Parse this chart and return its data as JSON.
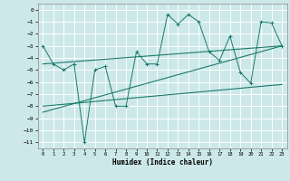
{
  "xlabel": "Humidex (Indice chaleur)",
  "xlim": [
    -0.5,
    23.5
  ],
  "ylim": [
    -11.5,
    0.5
  ],
  "yticks": [
    0,
    -1,
    -2,
    -3,
    -4,
    -5,
    -6,
    -7,
    -8,
    -9,
    -10,
    -11
  ],
  "xticks": [
    0,
    1,
    2,
    3,
    4,
    5,
    6,
    7,
    8,
    9,
    10,
    11,
    12,
    13,
    14,
    15,
    16,
    17,
    18,
    19,
    20,
    21,
    22,
    23
  ],
  "bg_color": "#cde8e8",
  "grid_color": "#ffffff",
  "line_color": "#1a7a6e",
  "main_x": [
    0,
    1,
    2,
    3,
    4,
    5,
    6,
    7,
    8,
    9,
    10,
    11,
    12,
    13,
    14,
    15,
    16,
    17,
    18,
    19,
    20,
    21,
    22,
    23
  ],
  "main_y": [
    -3.0,
    -4.5,
    -5.0,
    -4.5,
    -11.0,
    -5.0,
    -4.7,
    -8.0,
    -8.0,
    -3.5,
    -4.5,
    -4.5,
    -0.4,
    -1.2,
    -0.4,
    -1.0,
    -3.5,
    -4.2,
    -2.2,
    -5.2,
    -6.1,
    -1.0,
    -1.1,
    -3.0
  ],
  "trend1_x": [
    0,
    23
  ],
  "trend1_y": [
    -4.5,
    -3.0
  ],
  "trend2_x": [
    0,
    23
  ],
  "trend2_y": [
    -8.0,
    -6.2
  ],
  "trend3_x": [
    0,
    23
  ],
  "trend3_y": [
    -8.5,
    -3.0
  ]
}
